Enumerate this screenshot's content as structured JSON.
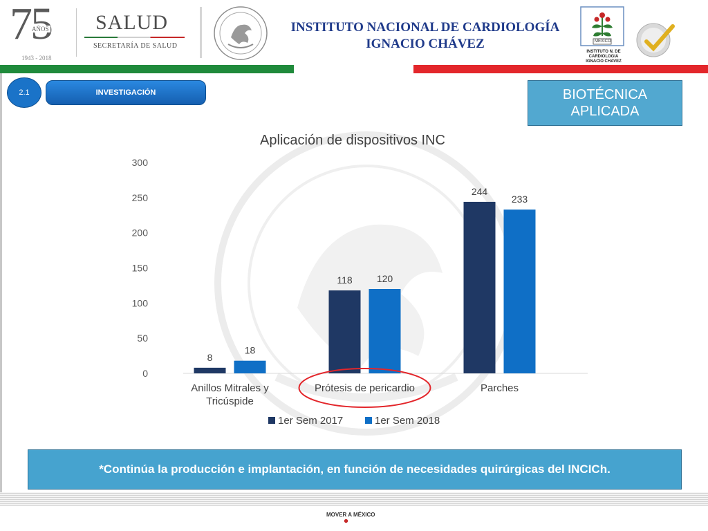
{
  "header": {
    "anniversary_number": "75",
    "anniversary_word": "AÑOS",
    "anniversary_years": "1943 - 2018",
    "salud": "SALUD",
    "secretaria": "SECRETARÍA DE SALUD",
    "institute_line1": "INSTITUTO NACIONAL DE CARDIOLOGÍA",
    "institute_line2": "IGNACIO CHÁVEZ",
    "inc_logo_text": "INSTITUTO N. DE CARDIOLOGIA IGNACIO CHAVEZ",
    "inc_logo_mexico": "MEXICO"
  },
  "section": {
    "number": "2.1",
    "label": "INVESTIGACIÓN",
    "badge_line1": "BIOTÉCNICA",
    "badge_line2": "APLICADA"
  },
  "chart_data": {
    "type": "bar",
    "title": "Aplicación de dispositivos INC",
    "categories": [
      "Anillos Mitrales y Tricúspide",
      "Prótesis de pericardio",
      "Parches"
    ],
    "category_lines": [
      [
        "Anillos Mitrales y",
        "Tricúspide"
      ],
      [
        "Prótesis de pericardio"
      ],
      [
        "Parches"
      ]
    ],
    "series": [
      {
        "name": "1er Sem 2017",
        "values": [
          8,
          118,
          244
        ],
        "color": "#1f3864"
      },
      {
        "name": "1er Sem 2018",
        "values": [
          18,
          120,
          233
        ],
        "color": "#0f6fc6"
      }
    ],
    "ylim": [
      0,
      300
    ],
    "yticks": [
      0,
      50,
      100,
      150,
      200,
      250,
      300
    ],
    "legend": "bottom",
    "grid": false,
    "highlight_category": "Prótesis de pericardio",
    "highlight_color": "#e3262b"
  },
  "note": "*Continúa la producción e implantación, en función de necesidades quirúrgicas del INCICh.",
  "footer": {
    "brand": "MOVER A MÉXICO"
  },
  "colors": {
    "green": "#1f8a3b",
    "red": "#e3262b",
    "navy_title": "#1f3a8a",
    "accent_blue": "#52a8d0"
  }
}
